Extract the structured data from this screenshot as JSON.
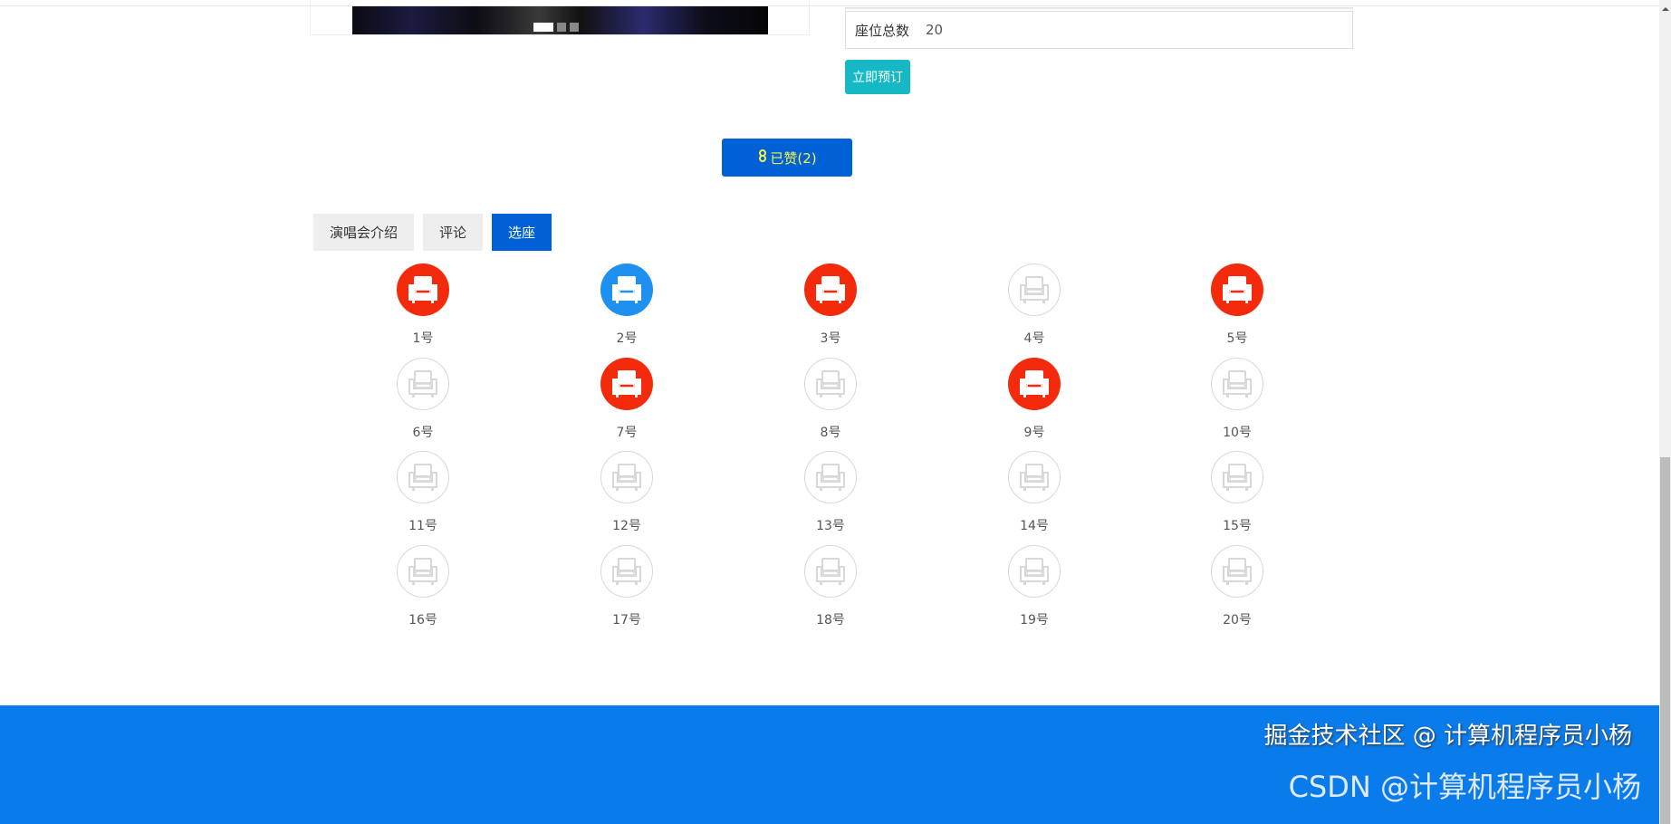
{
  "gallery": {
    "slides": 3,
    "active_slide": 1
  },
  "info": {
    "seats_total_label": "座位总数",
    "seats_total_value": "20"
  },
  "book_button": "立即预订",
  "like_button": {
    "icon": "thumbs-up-icon",
    "label": "已赞(2)"
  },
  "tabs": [
    {
      "label": "演唱会介绍",
      "active": false
    },
    {
      "label": "评论",
      "active": false
    },
    {
      "label": "选座",
      "active": true
    }
  ],
  "seat_colors": {
    "sold": "#f42a0c",
    "selected": "#1e90f0",
    "free": "#d8d8d8"
  },
  "seats": [
    {
      "label": "1号",
      "status": "sold"
    },
    {
      "label": "2号",
      "status": "selected"
    },
    {
      "label": "3号",
      "status": "sold"
    },
    {
      "label": "4号",
      "status": "free"
    },
    {
      "label": "5号",
      "status": "sold"
    },
    {
      "label": "6号",
      "status": "free"
    },
    {
      "label": "7号",
      "status": "sold"
    },
    {
      "label": "8号",
      "status": "free"
    },
    {
      "label": "9号",
      "status": "sold"
    },
    {
      "label": "10号",
      "status": "free"
    },
    {
      "label": "11号",
      "status": "free"
    },
    {
      "label": "12号",
      "status": "free"
    },
    {
      "label": "13号",
      "status": "free"
    },
    {
      "label": "14号",
      "status": "free"
    },
    {
      "label": "15号",
      "status": "free"
    },
    {
      "label": "16号",
      "status": "free"
    },
    {
      "label": "17号",
      "status": "free"
    },
    {
      "label": "18号",
      "status": "free"
    },
    {
      "label": "19号",
      "status": "free"
    },
    {
      "label": "20号",
      "status": "free"
    }
  ],
  "watermark": {
    "back": "CSDN @计算机程序员小杨",
    "front": "掘金技术社区 @ 计算机程序员小杨"
  }
}
